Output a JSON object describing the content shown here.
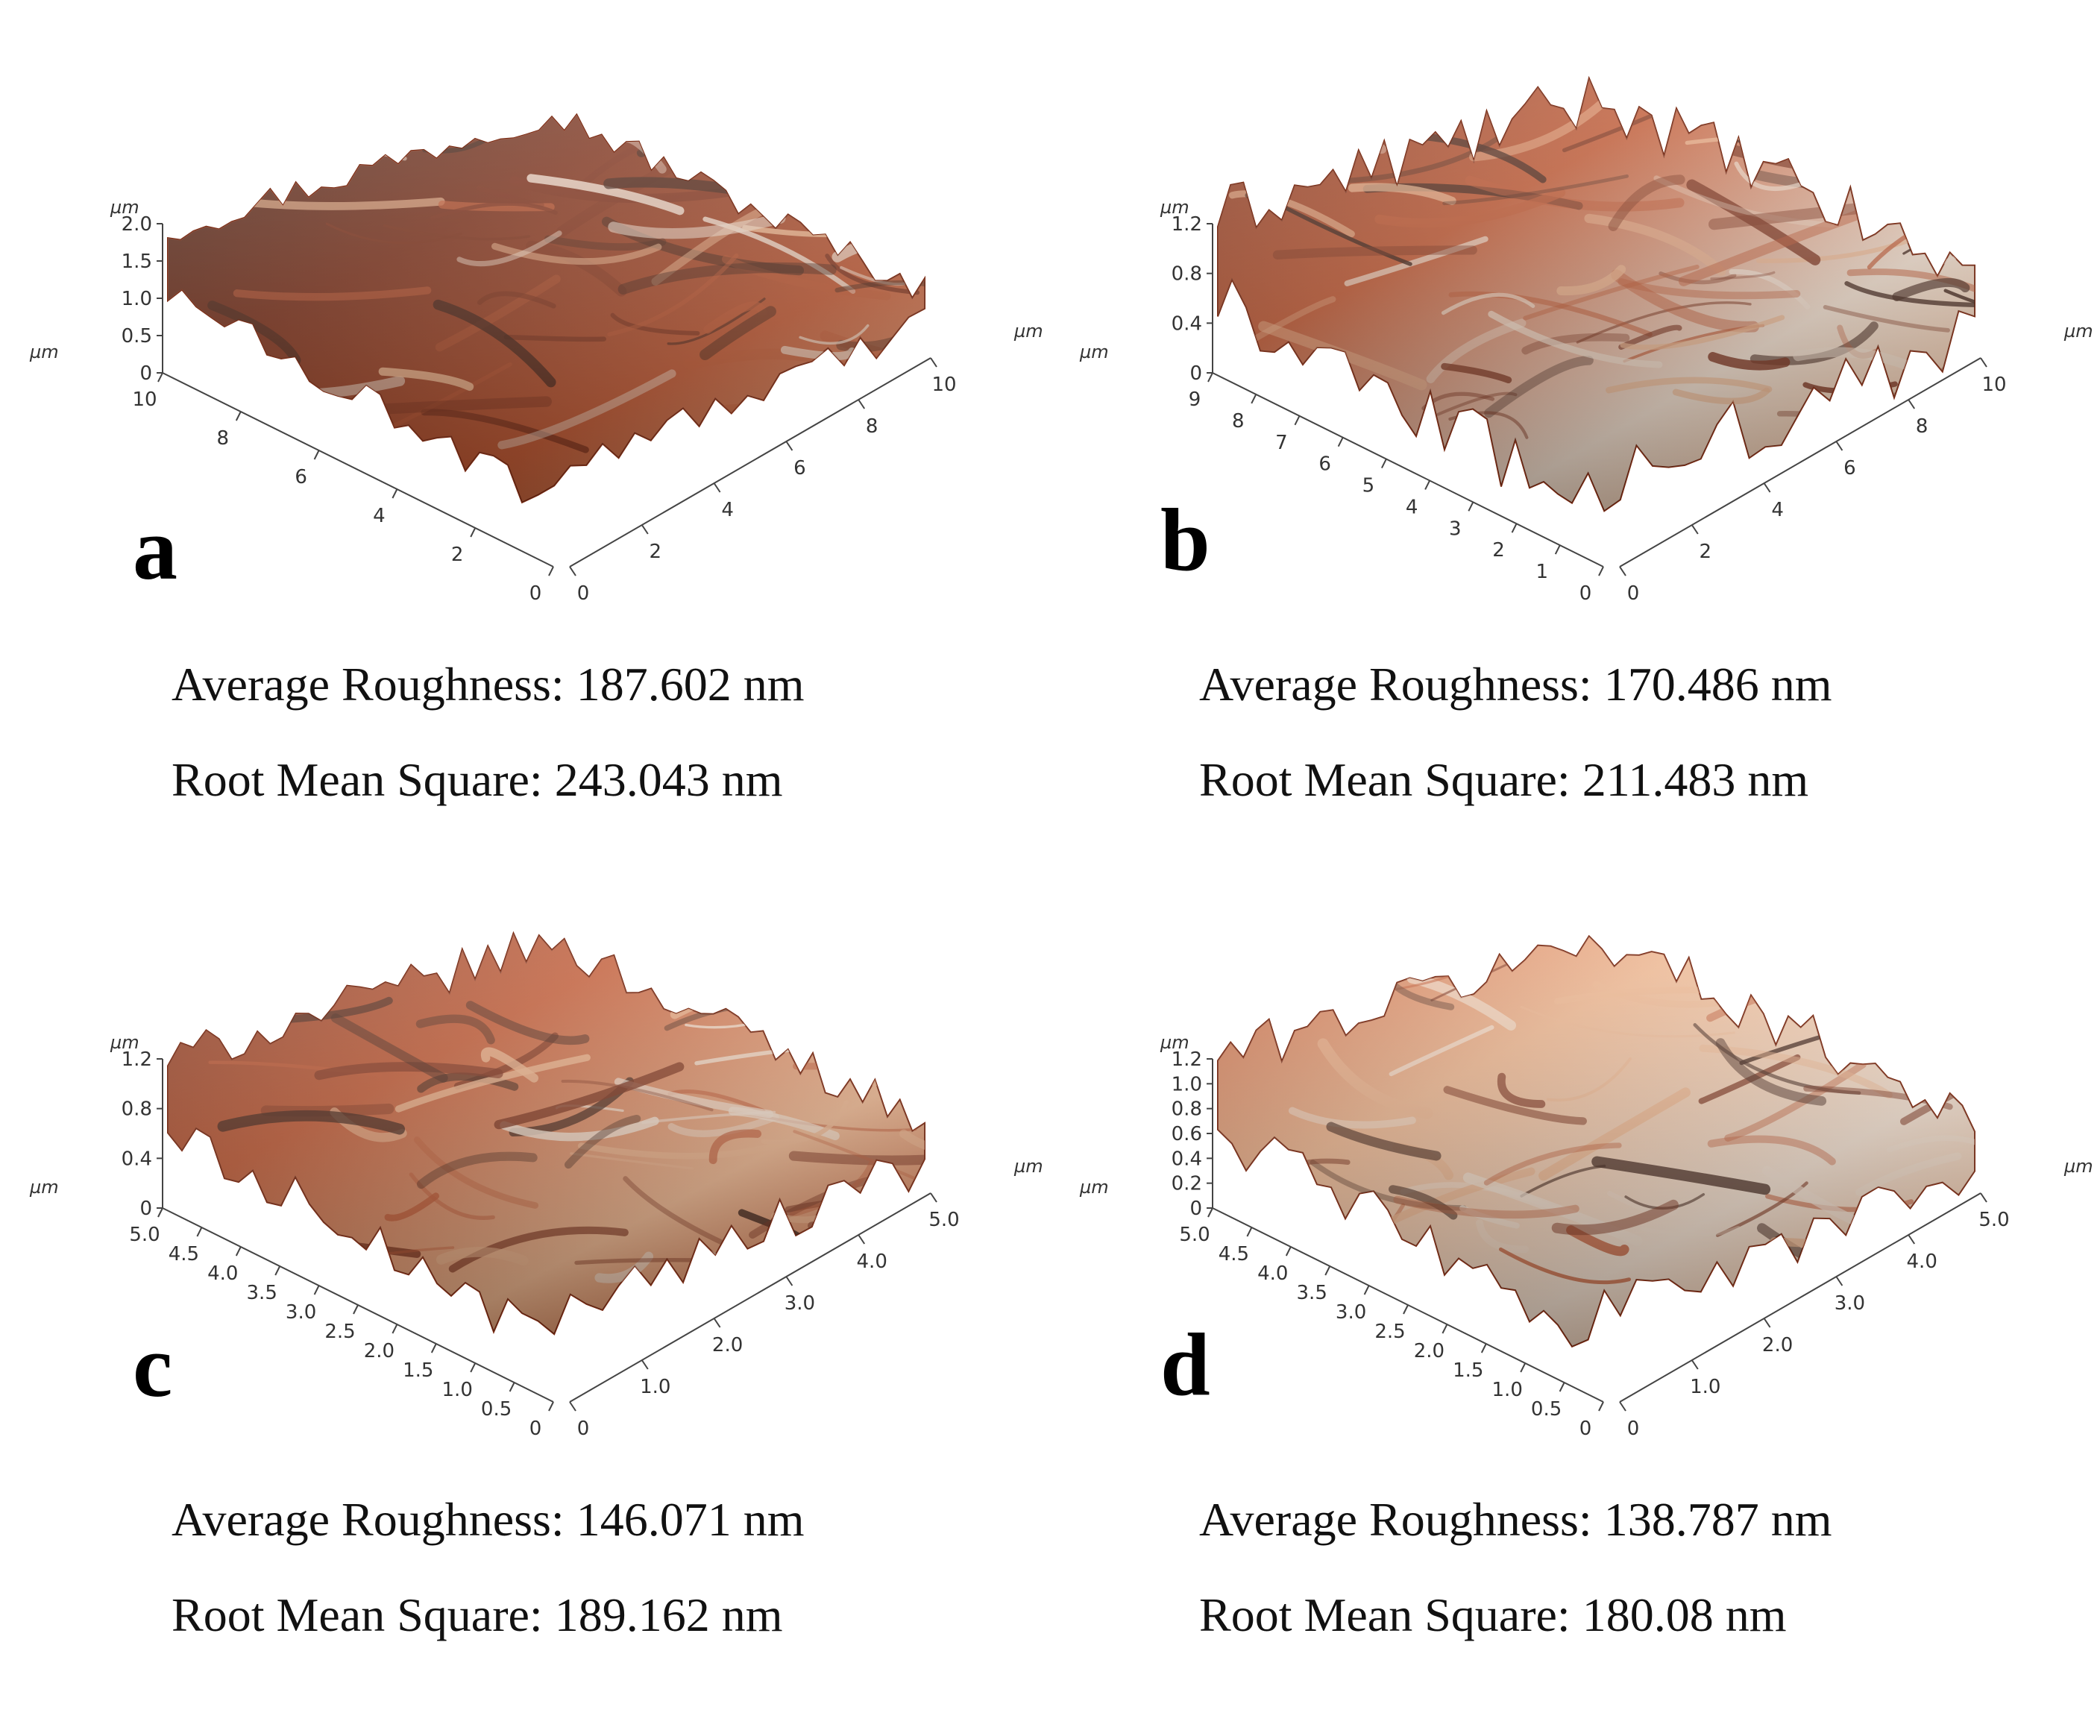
{
  "panels": [
    {
      "letter": "a",
      "unit": "µm",
      "z_ticks": [
        "2.0",
        "1.5",
        "1.0",
        "0.5",
        "0"
      ],
      "y_ticks": [
        "10",
        "8",
        "6",
        "4",
        "2",
        "0"
      ],
      "x_ticks": [
        "0",
        "2",
        "4",
        "6",
        "8",
        "10"
      ],
      "avg_label": "Average Roughness: 187.602 nm",
      "rms_label": "Root Mean Square: 243.043 nm",
      "tone": "dark"
    },
    {
      "letter": "b",
      "unit": "µm",
      "z_ticks": [
        "1.2",
        "0.8",
        "0.4",
        "0"
      ],
      "y_ticks": [
        "9",
        "8",
        "7",
        "6",
        "5",
        "4",
        "3",
        "2",
        "1",
        "0"
      ],
      "x_ticks": [
        "0",
        "2",
        "4",
        "6",
        "8",
        "10"
      ],
      "avg_label": "Average Roughness: 170.486 nm",
      "rms_label": "Root Mean Square: 211.483 nm",
      "tone": "mixed"
    },
    {
      "letter": "c",
      "unit": "µm",
      "z_ticks": [
        "1.2",
        "0.8",
        "0.4",
        "0"
      ],
      "y_ticks": [
        "5.0",
        "4.5",
        "4.0",
        "3.5",
        "3.0",
        "2.5",
        "2.0",
        "1.5",
        "1.0",
        "0.5",
        "0"
      ],
      "x_ticks": [
        "0",
        "1.0",
        "2.0",
        "3.0",
        "4.0",
        "5.0"
      ],
      "avg_label": "Average Roughness: 146.071 nm",
      "rms_label": "Root Mean Square: 189.162 nm",
      "tone": "smooth"
    },
    {
      "letter": "d",
      "unit": "µm",
      "z_ticks": [
        "1.2",
        "1.0",
        "0.8",
        "0.6",
        "0.4",
        "0.2",
        "0"
      ],
      "y_ticks": [
        "5.0",
        "4.5",
        "4.0",
        "3.5",
        "3.0",
        "2.5",
        "2.0",
        "1.5",
        "1.0",
        "0.5",
        "0"
      ],
      "x_ticks": [
        "0",
        "1.0",
        "2.0",
        "3.0",
        "4.0",
        "5.0"
      ],
      "avg_label": "Average Roughness: 138.787 nm",
      "rms_label": "Root Mean Square: 180.08 nm",
      "tone": "light"
    }
  ],
  "colors": {
    "surface_dark": "#7a2a12",
    "surface_mid": "#c2542c",
    "surface_light": "#f0b48a",
    "surface_highlight": "#f6e1cf",
    "surface_shadow": "#3b1a0e"
  }
}
